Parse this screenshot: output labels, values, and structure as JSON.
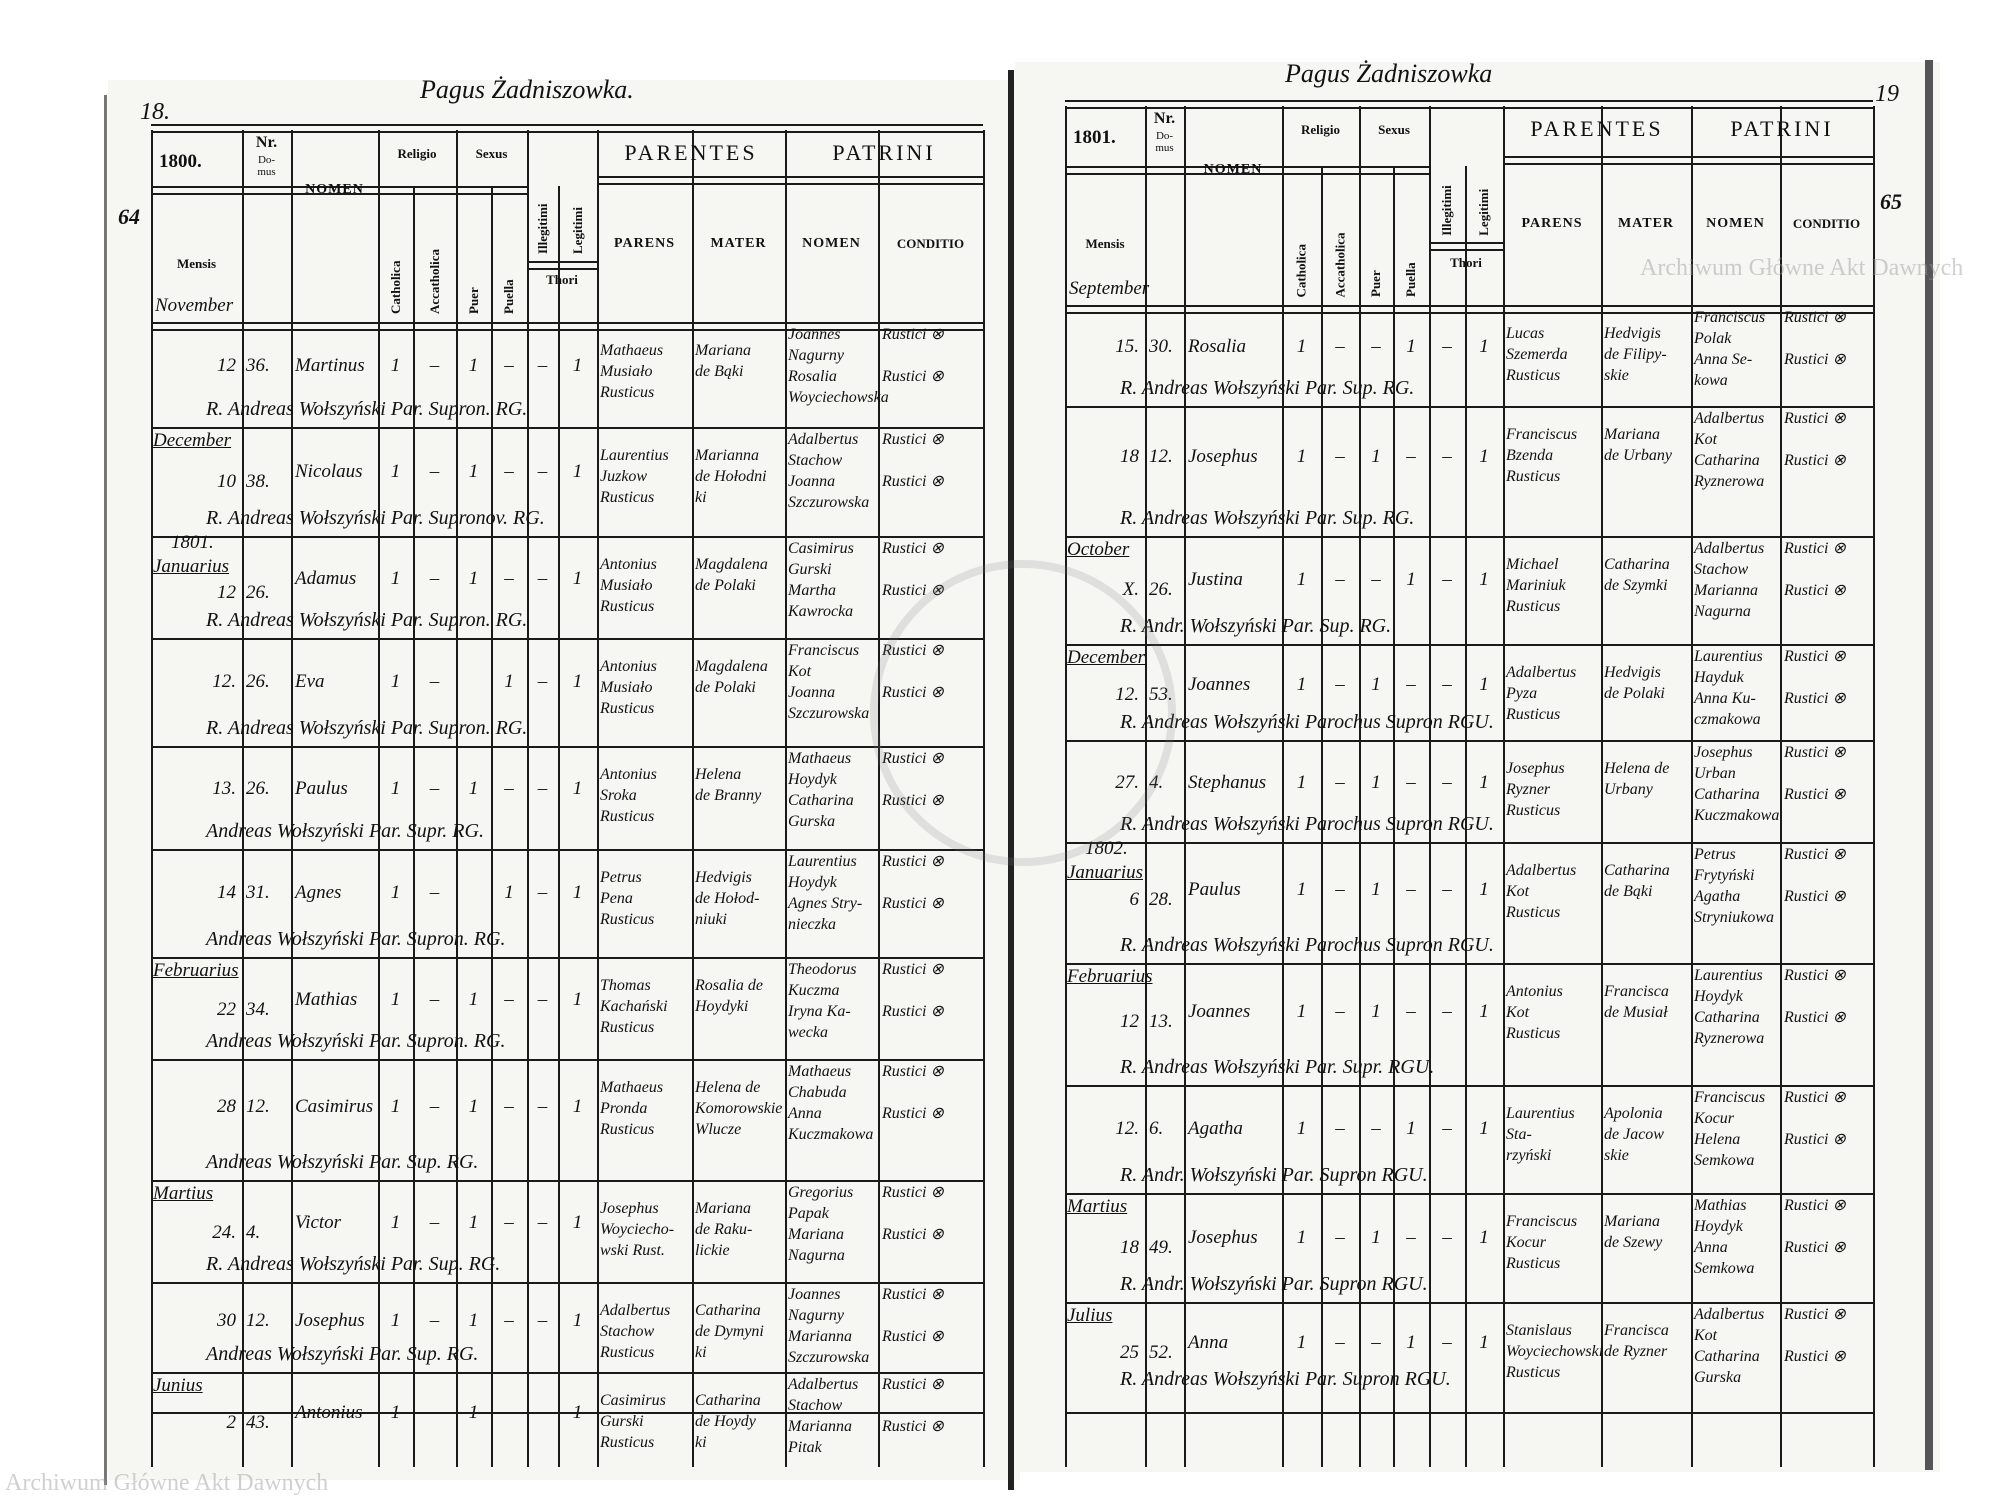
{
  "watermark": "Archiwum Główne Akt Dawnych",
  "seal_text": "ARCHIWUM GŁÓWNE AKT DAWNYCH",
  "headers": {
    "mensis": "Mensis",
    "nr": "Nr.",
    "domus": "Do-mus",
    "nomen": "NOMEN",
    "religio": "Religio",
    "catholica": "Catholica",
    "acatholica": "Accatholica",
    "sexus": "Sexus",
    "puer": "Puer",
    "puella": "Puella",
    "illegitimi": "Illegitimi",
    "legitimi": "Legitimi",
    "thori": "Thori",
    "parentes": "PARENTES",
    "parens": "PARENS",
    "mater": "MATER",
    "patrini": "PATRINI",
    "patrini_nomen": "NOMEN",
    "conditio": "CONDITIO"
  },
  "pages": [
    {
      "village": "Pagus Żadniszowka.",
      "page_number": "18.",
      "margin_note": "64",
      "year": "1800.",
      "first_month": "November",
      "entries": [
        {
          "day": "12",
          "domus": "36.",
          "nomen": "Martinus",
          "marks": [
            "1",
            "–",
            "1",
            "–",
            "–",
            "1"
          ],
          "parens": [
            "Mathaeus",
            "Musiało",
            "Rusticus"
          ],
          "mater": [
            "Mariana",
            "de Bąki"
          ],
          "patrini": [
            "Joannes",
            "Nagurny",
            "Rosalia",
            "Woyciechowska"
          ],
          "conditio": [
            "Rustici ⊗",
            "Rustici ⊗"
          ],
          "signature": "R. Andreas Wołszyński Par. Supron. RG."
        },
        {
          "month": "December",
          "day": "10",
          "domus": "38.",
          "nomen": "Nicolaus",
          "marks": [
            "1",
            "–",
            "1",
            "–",
            "–",
            "1"
          ],
          "parens": [
            "Laurentius",
            "Juzkow",
            "Rusticus"
          ],
          "mater": [
            "Marianna",
            "de Hołodni",
            "ki"
          ],
          "patrini": [
            "Adalbertus",
            "Stachow",
            "Joanna",
            "Szczurowska"
          ],
          "conditio": [
            "Rustici ⊗",
            "Rustici ⊗"
          ],
          "signature": "R. Andreas Wołszyński Par. Supronov. RG."
        },
        {
          "year": "1801.",
          "month": "Januarius",
          "day": "12",
          "domus": "26.",
          "nomen": "Adamus",
          "marks": [
            "1",
            "–",
            "1",
            "–",
            "–",
            "1"
          ],
          "parens": [
            "Antonius",
            "Musiało",
            "Rusticus"
          ],
          "mater": [
            "Magdalena",
            "de Polaki"
          ],
          "patrini": [
            "Casimirus",
            "Gurski",
            "Martha",
            "Kawrocka"
          ],
          "conditio": [
            "Rustici ⊗",
            "Rustici ⊗"
          ],
          "signature": "R. Andreas Wołszyński Par. Supron. RG."
        },
        {
          "day": "12.",
          "domus": "26.",
          "nomen": "Eva",
          "marks": [
            "1",
            "–",
            "",
            "1",
            "–",
            "1"
          ],
          "parens": [
            "Antonius",
            "Musiało",
            "Rusticus"
          ],
          "mater": [
            "Magdalena",
            "de Polaki"
          ],
          "patrini": [
            "Franciscus",
            "Kot",
            "Joanna",
            "Szczurowska"
          ],
          "conditio": [
            "Rustici ⊗",
            "Rustici ⊗"
          ],
          "signature": "R. Andreas Wołszyński Par. Supron. RG."
        },
        {
          "day": "13.",
          "domus": "26.",
          "nomen": "Paulus",
          "marks": [
            "1",
            "–",
            "1",
            "–",
            "–",
            "1"
          ],
          "parens": [
            "Antonius",
            "Sroka",
            "Rusticus"
          ],
          "mater": [
            "Helena",
            "de Branny"
          ],
          "patrini": [
            "Mathaeus",
            "Hoydyk",
            "Catharina",
            "Gurska"
          ],
          "conditio": [
            "Rustici ⊗",
            "Rustici ⊗"
          ],
          "signature": "Andreas Wołszyński Par. Supr. RG."
        },
        {
          "day": "14",
          "domus": "31.",
          "nomen": "Agnes",
          "marks": [
            "1",
            "–",
            "",
            "1",
            "–",
            "1"
          ],
          "parens": [
            "Petrus",
            "Pena",
            "Rusticus"
          ],
          "mater": [
            "Hedvigis",
            "de Hołod-",
            "niuki"
          ],
          "patrini": [
            "Laurentius",
            "Hoydyk",
            "Agnes Stry-",
            "nieczka"
          ],
          "conditio": [
            "Rustici ⊗",
            "Rustici ⊗"
          ],
          "signature": "Andreas Wołszyński Par. Supron. RG."
        },
        {
          "month": "Februarius",
          "day": "22",
          "domus": "34.",
          "nomen": "Mathias",
          "marks": [
            "1",
            "–",
            "1",
            "–",
            "–",
            "1"
          ],
          "parens": [
            "Thomas",
            "Kachański",
            "Rusticus"
          ],
          "mater": [
            "Rosalia de",
            "Hoydyki"
          ],
          "patrini": [
            "Theodorus",
            "Kuczma",
            "Iryna Ka-",
            "wecka"
          ],
          "conditio": [
            "Rustici ⊗",
            "Rustici ⊗"
          ],
          "signature": "Andreas Wołszyński Par. Supron. RG."
        },
        {
          "day": "28",
          "domus": "12.",
          "nomen": "Casimirus",
          "marks": [
            "1",
            "–",
            "1",
            "–",
            "–",
            "1"
          ],
          "parens": [
            "Mathaeus",
            "Pronda",
            "Rusticus"
          ],
          "mater": [
            "Helena de",
            "Komorowskie",
            "Wlucze"
          ],
          "patrini": [
            "Mathaeus",
            "Chabuda",
            "Anna",
            "Kuczmakowa"
          ],
          "conditio": [
            "Rustici ⊗",
            "Rustici ⊗"
          ],
          "signature": "Andreas Wołszyński Par. Sup. RG."
        },
        {
          "month": "Martius",
          "day": "24.",
          "domus": "4.",
          "nomen": "Victor",
          "marks": [
            "1",
            "–",
            "1",
            "–",
            "–",
            "1"
          ],
          "parens": [
            "Josephus",
            "Woyciecho-",
            "wski Rust."
          ],
          "mater": [
            "Mariana",
            "de Raku-",
            "lickie"
          ],
          "patrini": [
            "Gregorius",
            "Papak",
            "Mariana",
            "Nagurna"
          ],
          "conditio": [
            "Rustici ⊗",
            "Rustici ⊗"
          ],
          "signature": "R. Andreas Wołszyński Par. Sup. RG."
        },
        {
          "day": "30",
          "domus": "12.",
          "nomen": "Josephus",
          "marks": [
            "1",
            "–",
            "1",
            "–",
            "–",
            "1"
          ],
          "parens": [
            "Adalbertus",
            "Stachow",
            "Rusticus"
          ],
          "mater": [
            "Catharina",
            "de Dymyni",
            "ki"
          ],
          "patrini": [
            "Joannes",
            "Nagurny",
            "Marianna",
            "Szczurowska"
          ],
          "conditio": [
            "Rustici ⊗",
            "Rustici ⊗"
          ],
          "signature": "Andreas Wołszyński Par. Sup. RG."
        },
        {
          "month": "Junius",
          "day": "2",
          "domus": "43.",
          "nomen": "Antonius",
          "marks": [
            "1",
            "–",
            "1",
            "–",
            "–",
            "1"
          ],
          "parens": [
            "Casimirus",
            "Gurski",
            "Rusticus"
          ],
          "mater": [
            "Catharina",
            "de Hoydy",
            "ki"
          ],
          "patrini": [
            "Adalbertus",
            "Stachow",
            "Marianna",
            "Pitak"
          ],
          "conditio": [
            "Rustici ⊗",
            "Rustici ⊗"
          ],
          "signature": ""
        }
      ]
    },
    {
      "village": "Pagus Żadniszowka",
      "page_number": "19",
      "margin_note": "65",
      "year": "1801.",
      "first_month": "September",
      "entries": [
        {
          "day": "15.",
          "domus": "30.",
          "nomen": "Rosalia",
          "marks": [
            "1",
            "–",
            "–",
            "1",
            "–",
            "1"
          ],
          "parens": [
            "Lucas",
            "Szemerda",
            "Rusticus"
          ],
          "mater": [
            "Hedvigis",
            "de Filipy-",
            "skie"
          ],
          "patrini": [
            "Franciscus",
            "Polak",
            "Anna Se-",
            "kowa"
          ],
          "conditio": [
            "Rustici ⊗",
            "Rustici ⊗"
          ],
          "signature": "R. Andreas Wołszyński Par. Sup. RG."
        },
        {
          "day": "18",
          "domus": "12.",
          "nomen": "Josephus",
          "marks": [
            "1",
            "–",
            "1",
            "–",
            "–",
            "1"
          ],
          "parens": [
            "Franciscus",
            "Bzenda",
            "Rusticus"
          ],
          "mater": [
            "Mariana",
            "de Urbany"
          ],
          "patrini": [
            "Adalbertus",
            "Kot",
            "Catharina",
            "Ryznerowa"
          ],
          "conditio": [
            "Rustici ⊗",
            "Rustici ⊗"
          ],
          "signature": "R. Andreas Wołszyński Par. Sup. RG."
        },
        {
          "month": "October",
          "day": "X.",
          "domus": "26.",
          "nomen": "Justina",
          "marks": [
            "1",
            "–",
            "–",
            "1",
            "–",
            "1"
          ],
          "parens": [
            "Michael",
            "Mariniuk",
            "Rusticus"
          ],
          "mater": [
            "Catharina",
            "de Szymki"
          ],
          "patrini": [
            "Adalbertus",
            "Stachow",
            "Marianna",
            "Nagurna"
          ],
          "conditio": [
            "Rustici ⊗",
            "Rustici ⊗"
          ],
          "signature": "R. Andr. Wołszyński Par. Sup. RG."
        },
        {
          "month": "December",
          "day": "12.",
          "domus": "53.",
          "nomen": "Joannes",
          "marks": [
            "1",
            "–",
            "1",
            "–",
            "–",
            "1"
          ],
          "parens": [
            "Adalbertus",
            "Pyza",
            "Rusticus"
          ],
          "mater": [
            "Hedvigis",
            "de Polaki"
          ],
          "patrini": [
            "Laurentius",
            "Hayduk",
            "Anna Ku-",
            "czmakowa"
          ],
          "conditio": [
            "Rustici ⊗",
            "Rustici ⊗"
          ],
          "signature": "R. Andreas Wołszyński Parochus Supron RGU."
        },
        {
          "day": "27.",
          "domus": "4.",
          "nomen": "Stephanus",
          "marks": [
            "1",
            "–",
            "1",
            "–",
            "–",
            "1"
          ],
          "parens": [
            "Josephus",
            "Ryzner",
            "Rusticus"
          ],
          "mater": [
            "Helena de",
            "Urbany"
          ],
          "patrini": [
            "Josephus",
            "Urban",
            "Catharina",
            "Kuczmakowa"
          ],
          "conditio": [
            "Rustici ⊗",
            "Rustici ⊗"
          ],
          "signature": "R. Andreas Wołszyński Parochus Supron RGU."
        },
        {
          "year": "1802.",
          "month": "Januarius",
          "day": "6",
          "domus": "28.",
          "nomen": "Paulus",
          "marks": [
            "1",
            "–",
            "1",
            "–",
            "–",
            "1"
          ],
          "parens": [
            "Adalbertus",
            "Kot",
            "Rusticus"
          ],
          "mater": [
            "Catharina",
            "de Bąki"
          ],
          "patrini": [
            "Petrus",
            "Frytyński",
            "Agatha",
            "Stryniukowa"
          ],
          "conditio": [
            "Rustici ⊗",
            "Rustici ⊗"
          ],
          "signature": "R. Andreas Wołszyński Parochus Supron RGU."
        },
        {
          "month": "Februarius",
          "day": "12",
          "domus": "13.",
          "nomen": "Joannes",
          "marks": [
            "1",
            "–",
            "1",
            "–",
            "–",
            "1"
          ],
          "parens": [
            "Antonius",
            "Kot",
            "Rusticus"
          ],
          "mater": [
            "Francisca",
            "de Musiał"
          ],
          "patrini": [
            "Laurentius",
            "Hoydyk",
            "Catharina",
            "Ryznerowa"
          ],
          "conditio": [
            "Rustici ⊗",
            "Rustici ⊗"
          ],
          "signature": "R. Andreas Wołszyński Par. Supr. RGU."
        },
        {
          "day": "12.",
          "domus": "6.",
          "nomen": "Agatha",
          "marks": [
            "1",
            "–",
            "–",
            "1",
            "–",
            "1"
          ],
          "parens": [
            "Laurentius",
            "Sta-",
            "rzyński"
          ],
          "mater": [
            "Apolonia",
            "de Jacow",
            "skie"
          ],
          "patrini": [
            "Franciscus",
            "Kocur",
            "Helena",
            "Semkowa"
          ],
          "conditio": [
            "Rustici ⊗",
            "Rustici ⊗"
          ],
          "signature": "R. Andr. Wołszyński Par. Supron RGU."
        },
        {
          "month": "Martius",
          "day": "18",
          "domus": "49.",
          "nomen": "Josephus",
          "marks": [
            "1",
            "–",
            "1",
            "–",
            "–",
            "1"
          ],
          "parens": [
            "Franciscus",
            "Kocur",
            "Rusticus"
          ],
          "mater": [
            "Mariana",
            "de Szewy"
          ],
          "patrini": [
            "Mathias",
            "Hoydyk",
            "Anna",
            "Semkowa"
          ],
          "conditio": [
            "Rustici ⊗",
            "Rustici ⊗"
          ],
          "signature": "R. Andr. Wołszyński Par. Supron RGU."
        },
        {
          "month": "Julius",
          "day": "25",
          "domus": "52.",
          "nomen": "Anna",
          "marks": [
            "1",
            "–",
            "–",
            "1",
            "–",
            "1"
          ],
          "parens": [
            "Stanislaus",
            "Woyciechowski",
            "Rusticus"
          ],
          "mater": [
            "Francisca",
            "de Ryzner"
          ],
          "patrini": [
            "Adalbertus",
            "Kot",
            "Catharina",
            "Gurska"
          ],
          "conditio": [
            "Rustici ⊗",
            "Rustici ⊗"
          ],
          "signature": "R. Andreas Wołszyński Par. Supron RGU."
        }
      ]
    }
  ]
}
